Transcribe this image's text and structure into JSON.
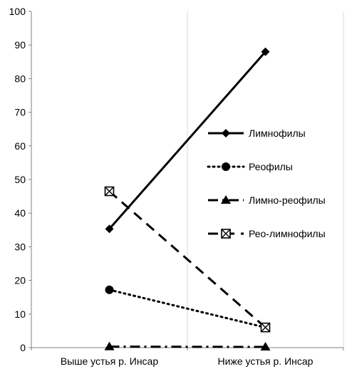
{
  "chart_data": {
    "type": "line",
    "title": "",
    "xlabel": "",
    "ylabel": "",
    "categories": [
      "Выше устья р. Инсар",
      "Ниже устья р. Инсар"
    ],
    "ylim": [
      0,
      100
    ],
    "yticks": [
      0,
      10,
      20,
      30,
      40,
      50,
      60,
      70,
      80,
      90,
      100
    ],
    "grid": "vertical gridlines at category boundaries",
    "legend_position": "right",
    "series": [
      {
        "name": "Лимнофилы",
        "values": [
          35.3,
          88
        ],
        "line_style": "solid",
        "marker": "diamond"
      },
      {
        "name": "Реофилы",
        "values": [
          17.2,
          6
        ],
        "line_style": "dotted",
        "marker": "circle"
      },
      {
        "name": "Лимно-реофилы",
        "values": [
          0.3,
          0.2
        ],
        "line_style": "dash-dot",
        "marker": "triangle"
      },
      {
        "name": "Рео-лимнофилы",
        "values": [
          46.5,
          6
        ],
        "line_style": "dashed",
        "marker": "square-x"
      }
    ],
    "colors": {
      "line": "#000000",
      "grid": "#d9d9d9",
      "axis": "#808080"
    }
  }
}
